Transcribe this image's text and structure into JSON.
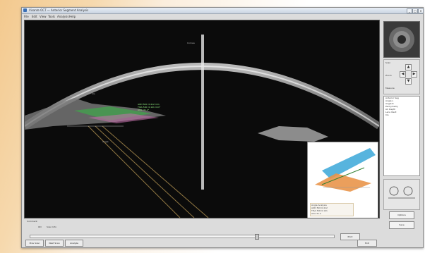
{
  "window": {
    "title": "Visante OCT — Anterior Segment Analysis",
    "controls": [
      "_",
      "□",
      "×"
    ]
  },
  "menu": [
    "File",
    "Edit",
    "View",
    "Tools",
    "Analysis",
    "Help"
  ],
  "scan": {
    "labels": [
      "Iris",
      "Cornea",
      "Angle"
    ],
    "measurements": [
      "AOD 500: 0.412 mm",
      "TISA 500: 0.141 mm²",
      "ACA: 31.2°"
    ]
  },
  "inset": {
    "caption_lines": [
      "Angle Analysis",
      "AOD 500  0.412",
      "TISA 500  0.141",
      "ACA  31.2"
    ]
  },
  "right_panel": {
    "labels": [
      "Scan",
      "Zoom",
      "Measure"
    ],
    "list_items": [
      "Anterior Seg",
      "Angle L",
      "Angle R",
      "Pachymetry",
      "AC Depth",
      "Lens Vault",
      "Iris"
    ],
    "buttons": [
      "Options",
      "Save"
    ]
  },
  "bottom": {
    "labels": [
      "Comment",
      "OD",
      "Scan Info"
    ],
    "buttons": [
      "Prev Scan",
      "Next Scan",
      "Analyze",
      "Print",
      "Exit"
    ],
    "progress": 0.75
  },
  "colors": {
    "accent": "#3a6fb5",
    "measure": "#9dff8a"
  }
}
